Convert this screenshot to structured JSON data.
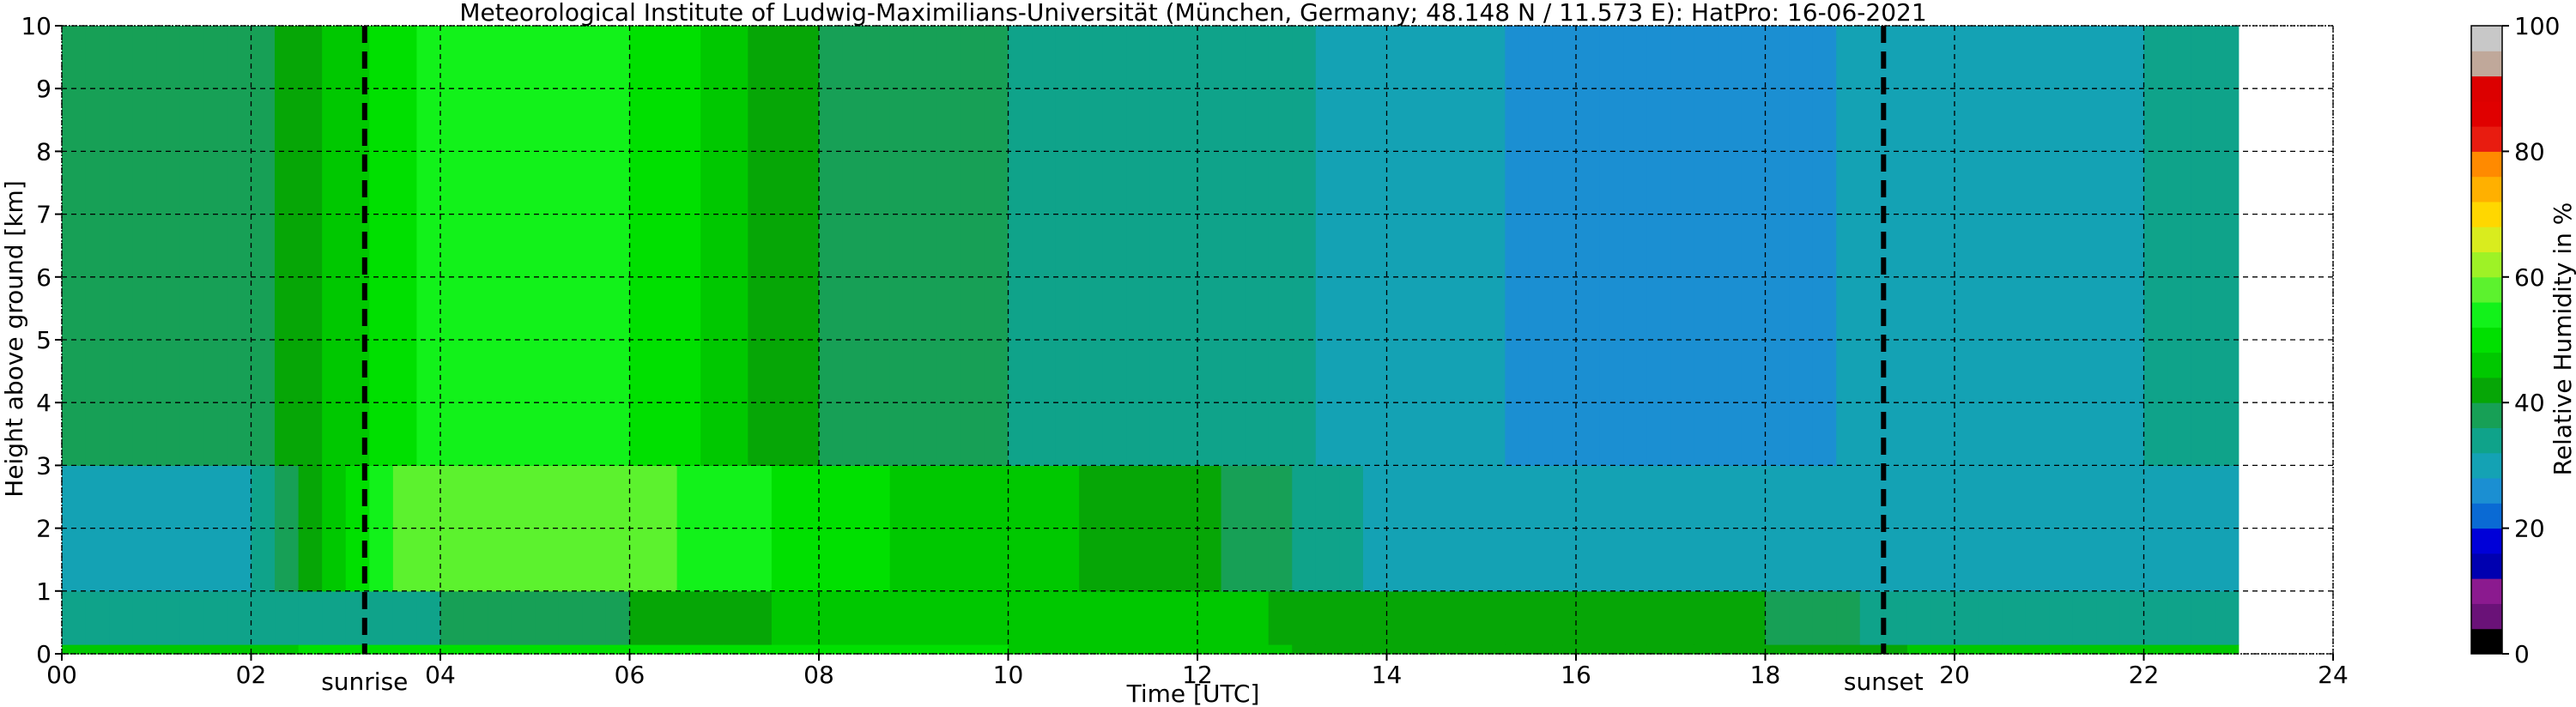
{
  "chart_data": {
    "type": "heatmap",
    "title": "Meteorological Institute of Ludwig-Maximilians-Universität (München, Germany; 48.148 N / 11.573 E):    HatPro: 16-06-2021",
    "xlabel": "Time [UTC]",
    "ylabel": "Height above ground [km]",
    "xlim": [
      0,
      24
    ],
    "ylim": [
      0,
      10
    ],
    "x_ticks": [
      "00",
      "02",
      "04",
      "06",
      "08",
      "10",
      "12",
      "14",
      "16",
      "18",
      "20",
      "22",
      "24"
    ],
    "y_ticks": [
      "0",
      "1",
      "2",
      "3",
      "4",
      "5",
      "6",
      "7",
      "8",
      "9",
      "10"
    ],
    "grid": true,
    "data_end_hour": 23.0,
    "colorbar": {
      "label": "Relative Humidity in %",
      "ticks": [
        "0",
        "20",
        "40",
        "60",
        "80",
        "100"
      ],
      "range": [
        0,
        100
      ],
      "colors": [
        "#000000",
        "#6a1278",
        "#8b1a8f",
        "#0000b0",
        "#0000d8",
        "#0a6ad4",
        "#1b8fd2",
        "#14a2b4",
        "#0fa38a",
        "#17a056",
        "#06a606",
        "#00c800",
        "#00e000",
        "#12f21a",
        "#5cf22e",
        "#9ef226",
        "#d9ec1e",
        "#ffd700",
        "#ffb000",
        "#ff8a00",
        "#e81c10",
        "#e00000",
        "#dc0000",
        "#c0a89a",
        "#c8c8c8"
      ]
    },
    "events": [
      {
        "name": "sunrise",
        "hour": 3.2
      },
      {
        "name": "sunset",
        "hour": 19.25
      }
    ],
    "rh_summary": [
      {
        "hour": 0,
        "near_surface": 45,
        "0_1km": 32,
        "1_3km": 30,
        "3_10km": 38
      },
      {
        "hour": 2,
        "near_surface": 45,
        "0_1km": 33,
        "1_3km": 30,
        "3_10km": 37
      },
      {
        "hour": 3,
        "near_surface": 50,
        "0_1km": 35,
        "1_3km": 50,
        "3_10km": 45
      },
      {
        "hour": 4,
        "near_surface": 50,
        "0_1km": 36,
        "1_3km": 60,
        "3_10km": 55
      },
      {
        "hour": 6,
        "near_surface": 48,
        "0_1km": 40,
        "1_3km": 58,
        "3_10km": 52
      },
      {
        "hour": 8,
        "near_surface": 50,
        "0_1km": 45,
        "1_3km": 50,
        "3_10km": 40
      },
      {
        "hour": 10,
        "near_surface": 48,
        "0_1km": 45,
        "1_3km": 45,
        "3_10km": 36
      },
      {
        "hour": 12,
        "near_surface": 46,
        "0_1km": 45,
        "1_3km": 42,
        "3_10km": 35
      },
      {
        "hour": 14,
        "near_surface": 42,
        "0_1km": 42,
        "1_3km": 30,
        "3_10km": 30
      },
      {
        "hour": 16,
        "near_surface": 40,
        "0_1km": 40,
        "1_3km": 30,
        "3_10km": 27
      },
      {
        "hour": 18,
        "near_surface": 40,
        "0_1km": 40,
        "1_3km": 30,
        "3_10km": 27
      },
      {
        "hour": 20,
        "near_surface": 45,
        "0_1km": 32,
        "1_3km": 30,
        "3_10km": 30
      },
      {
        "hour": 22,
        "near_surface": 45,
        "0_1km": 32,
        "1_3km": 30,
        "3_10km": 32
      }
    ]
  }
}
